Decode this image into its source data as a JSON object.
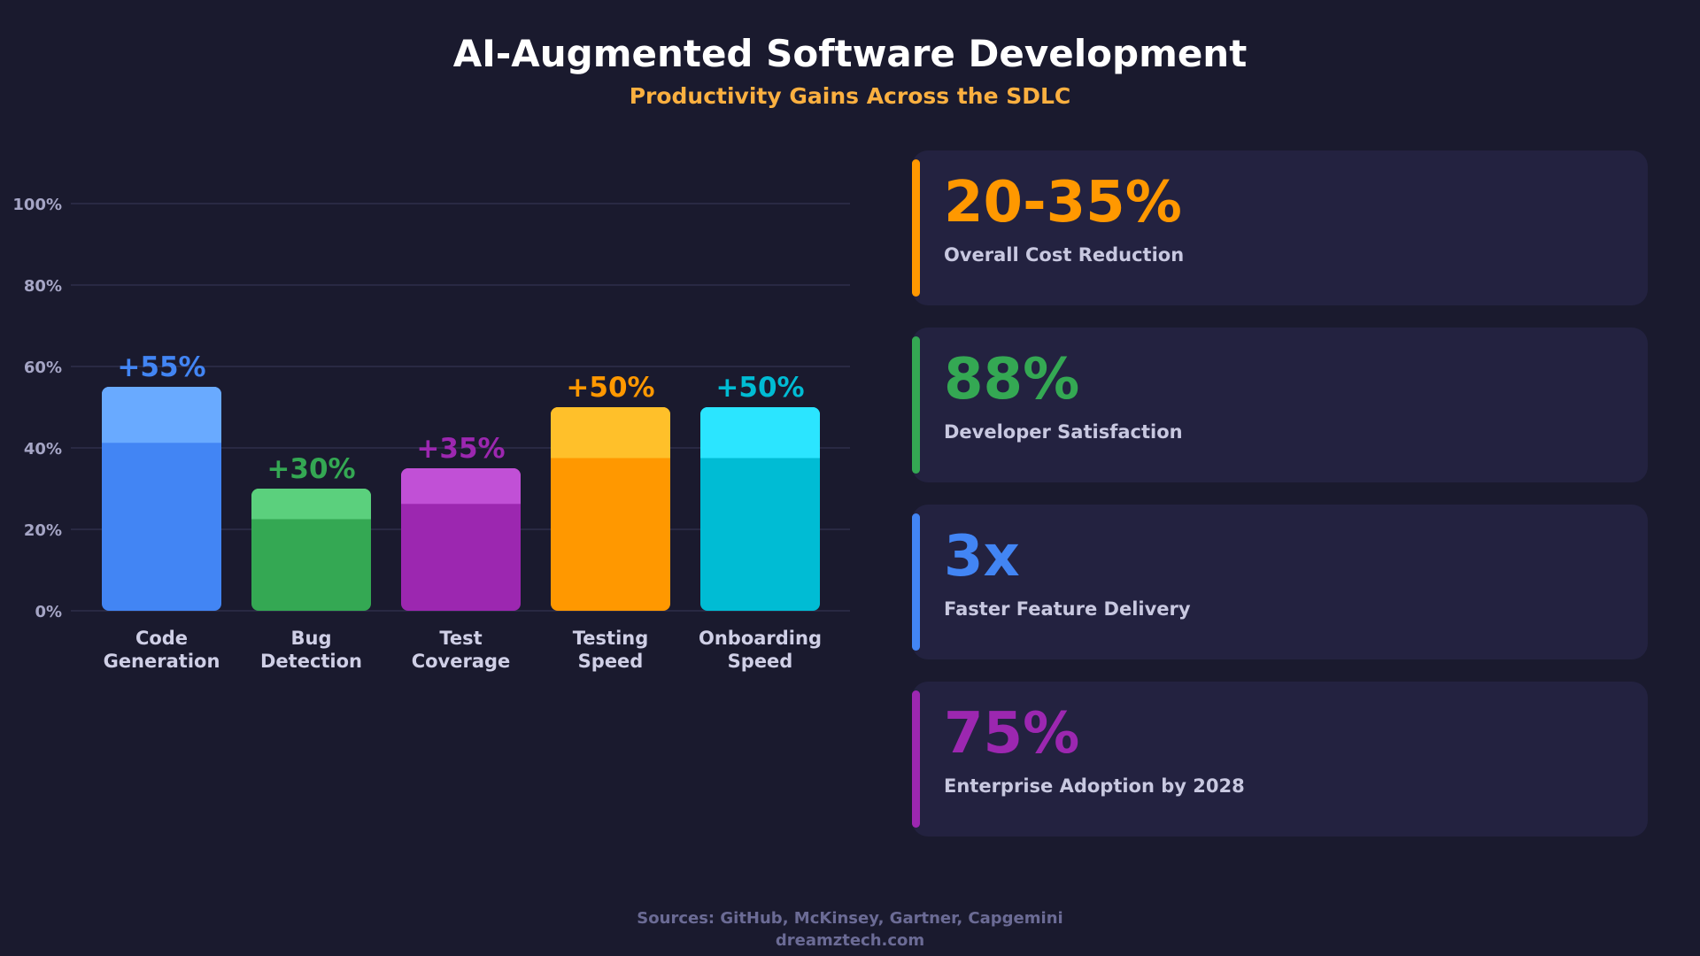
{
  "header": {
    "title": "AI-Augmented Software Development",
    "subtitle": "Productivity Gains Across the SDLC"
  },
  "chart_data": {
    "type": "bar",
    "title": "",
    "xlabel": "",
    "ylabel": "",
    "ylim": [
      0,
      100
    ],
    "yticks": [
      "0%",
      "20%",
      "40%",
      "60%",
      "80%",
      "100%"
    ],
    "ytick_values": [
      0,
      20,
      40,
      60,
      80,
      100
    ],
    "grid": true,
    "categories": [
      [
        "Code",
        "Generation"
      ],
      [
        "Bug",
        "Detection"
      ],
      [
        "Test",
        "Coverage"
      ],
      [
        "Testing",
        "Speed"
      ],
      [
        "Onboarding",
        "Speed"
      ]
    ],
    "values": [
      55,
      30,
      35,
      50,
      50
    ],
    "data_labels": [
      "+55%",
      "+30%",
      "+35%",
      "+50%",
      "+50%"
    ],
    "colors": [
      "#4285f4",
      "#34a853",
      "#9c27b0",
      "#ff9800",
      "#00bcd4"
    ],
    "highlight_colors": [
      "#69aaff",
      "#5bd07d",
      "#c150d6",
      "#ffc02a",
      "#2be5ff"
    ]
  },
  "stats": [
    {
      "value": "20-35%",
      "label": "Overall Cost Reduction",
      "color": "#ff9800"
    },
    {
      "value": "88%",
      "label": "Developer Satisfaction",
      "color": "#34a853"
    },
    {
      "value": "3x",
      "label": "Faster Feature Delivery",
      "color": "#4285f4"
    },
    {
      "value": "75%",
      "label": "Enterprise Adoption by 2028",
      "color": "#9c27b0"
    }
  ],
  "footer": {
    "sources": "Sources: GitHub, McKinsey, Gartner, Capgemini",
    "site": "dreamztech.com"
  }
}
